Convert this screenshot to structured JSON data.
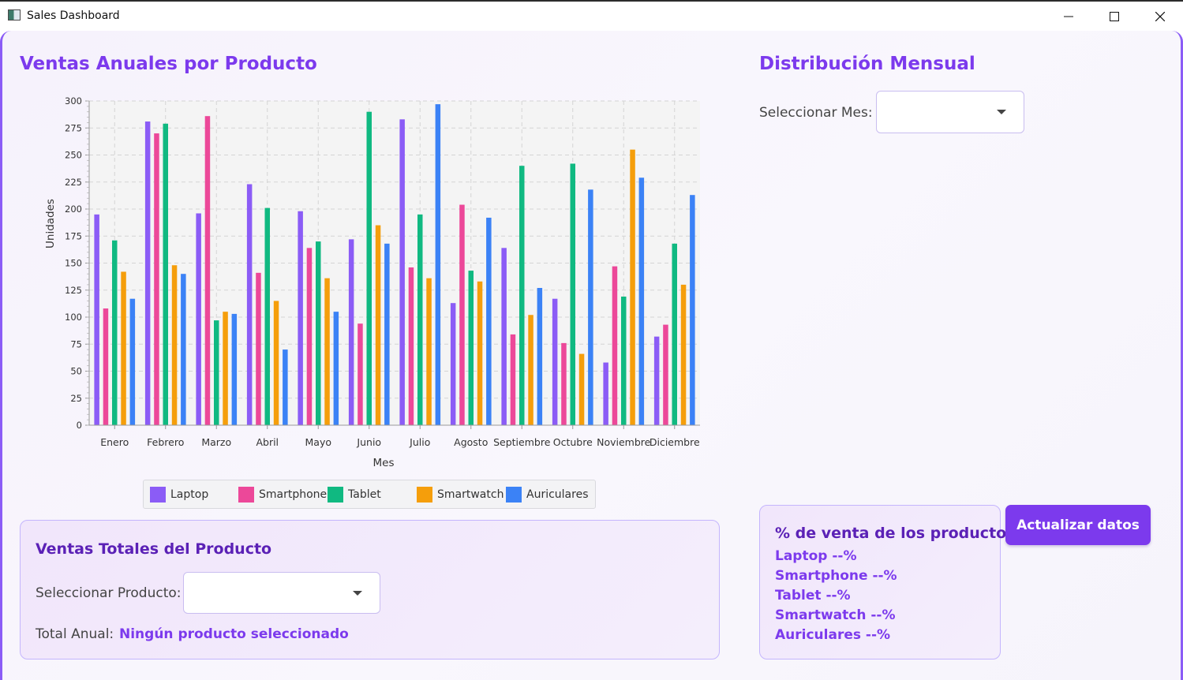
{
  "window": {
    "title": "Sales Dashboard"
  },
  "left": {
    "title": "Ventas Anuales por Producto"
  },
  "right": {
    "title": "Distribución Mensual",
    "month_label": "Seleccionar Mes:",
    "month_value": ""
  },
  "chart_data": {
    "type": "bar",
    "categories": [
      "Enero",
      "Febrero",
      "Marzo",
      "Abril",
      "Mayo",
      "Junio",
      "Julio",
      "Agosto",
      "Septiembre",
      "Octubre",
      "Noviembre",
      "Diciembre"
    ],
    "series": [
      {
        "name": "Laptop",
        "color": "#8b5cf6",
        "values": [
          195,
          281,
          196,
          223,
          198,
          172,
          283,
          113,
          164,
          117,
          58,
          82
        ]
      },
      {
        "name": "Smartphone",
        "color": "#ec4899",
        "values": [
          108,
          270,
          286,
          141,
          164,
          94,
          146,
          204,
          84,
          76,
          147,
          93
        ]
      },
      {
        "name": "Tablet",
        "color": "#10b981",
        "values": [
          171,
          279,
          97,
          201,
          170,
          290,
          195,
          143,
          240,
          242,
          119,
          168
        ]
      },
      {
        "name": "Smartwatch",
        "color": "#f59e0b",
        "values": [
          142,
          148,
          105,
          115,
          136,
          185,
          136,
          133,
          102,
          66,
          255,
          130
        ]
      },
      {
        "name": "Auriculares",
        "color": "#3b82f6",
        "values": [
          117,
          140,
          103,
          70,
          105,
          168,
          297,
          192,
          127,
          218,
          229,
          213
        ]
      }
    ],
    "ylim": [
      0,
      300
    ],
    "yticks": [
      0,
      25,
      50,
      75,
      100,
      125,
      150,
      175,
      200,
      225,
      250,
      275,
      300
    ],
    "xlabel": "Mes",
    "ylabel": "Unidades",
    "grid": true,
    "legend": "bottom"
  },
  "product_panel": {
    "title": "Ventas Totales del Producto",
    "select_label": "Seleccionar Producto:",
    "select_value": "",
    "total_label": "Total Anual:",
    "total_value": "Ningún producto seleccionado"
  },
  "pct_panel": {
    "title": "% de venta de los productos",
    "lines": [
      "Laptop --%",
      "Smartphone --%",
      "Tablet --%",
      "Smartwatch --%",
      "Auriculares --%"
    ]
  },
  "update_button": "Actualizar datos"
}
